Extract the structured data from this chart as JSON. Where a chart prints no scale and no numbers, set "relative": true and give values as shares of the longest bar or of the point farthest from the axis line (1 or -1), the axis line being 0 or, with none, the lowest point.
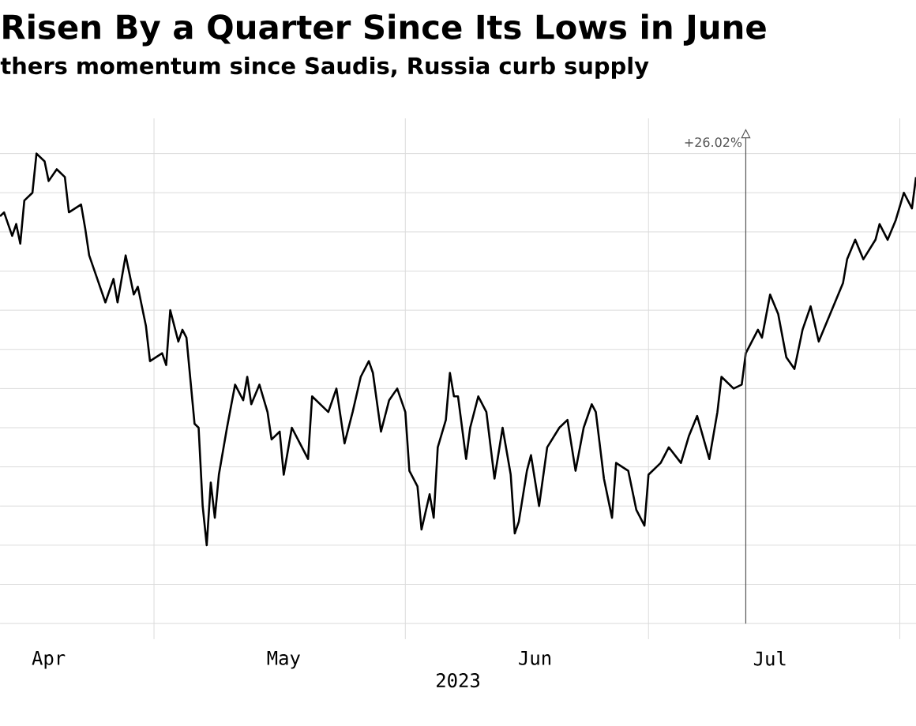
{
  "chart_data": {
    "type": "line",
    "title": "Risen By a Quarter Since Its Lows in June",
    "subtitle": "thers momentum since Saudis, Russia curb supply",
    "xlabel": "2023",
    "relative": true,
    "color": "#000000",
    "grid": true,
    "xlim": [
      "2023-04-12",
      "2023-08-03"
    ],
    "xticks": [
      {
        "value": "2023-05-01",
        "label": null
      },
      {
        "value": "2023-06-01",
        "label": null
      },
      {
        "value": "2023-07-01",
        "label": null
      },
      {
        "value": "2023-08-01",
        "label": null
      },
      {
        "value": "2023-04-18",
        "label": "Apr"
      },
      {
        "value": "2023-05-17",
        "label": "May"
      },
      {
        "value": "2023-06-17",
        "label": "Jun"
      },
      {
        "value": "2023-07-16",
        "label": "Jul"
      }
    ],
    "ref_lines": [
      {
        "axis": "x",
        "value": "2023-07-13",
        "label": "+26.02%",
        "color": "#555555"
      }
    ],
    "x": [
      "2023-04-12",
      "2023-04-12T12:00",
      "2023-04-13T12:00",
      "2023-04-14",
      "2023-04-14T12:00",
      "2023-04-15",
      "2023-04-16",
      "2023-04-16T12:00",
      "2023-04-17T12:00",
      "2023-04-18",
      "2023-04-19",
      "2023-04-20",
      "2023-04-20T12:00",
      "2023-04-22",
      "2023-04-22T12:00",
      "2023-04-23",
      "2023-04-24",
      "2023-04-25",
      "2023-04-26",
      "2023-04-26T12:00",
      "2023-04-27T12:00",
      "2023-04-28T12:00",
      "2023-04-29",
      "2023-04-30",
      "2023-04-30T12:00",
      "2023-05-02",
      "2023-05-02T12:00",
      "2023-05-03",
      "2023-05-04",
      "2023-05-04T12:00",
      "2023-05-05",
      "2023-05-06",
      "2023-05-06T12:00",
      "2023-05-07",
      "2023-05-07T12:00",
      "2023-05-08",
      "2023-05-08T12:00",
      "2023-05-09",
      "2023-05-10",
      "2023-05-11",
      "2023-05-12",
      "2023-05-12T12:00",
      "2023-05-13",
      "2023-05-14",
      "2023-05-15",
      "2023-05-15T12:00",
      "2023-05-16T12:00",
      "2023-05-17",
      "2023-05-18",
      "2023-05-19",
      "2023-05-20",
      "2023-05-20T12:00",
      "2023-05-22T12:00",
      "2023-05-23T12:00",
      "2023-05-24T12:00",
      "2023-05-25T12:00",
      "2023-05-26T12:00",
      "2023-05-27T12:00",
      "2023-05-28",
      "2023-05-29",
      "2023-05-30",
      "2023-05-31",
      "2023-06-01",
      "2023-06-01T12:00",
      "2023-06-02T12:00",
      "2023-06-03",
      "2023-06-04",
      "2023-06-04T12:00",
      "2023-06-05",
      "2023-06-06",
      "2023-06-06T12:00",
      "2023-06-07",
      "2023-06-07T12:00",
      "2023-06-08T12:00",
      "2023-06-09",
      "2023-06-10",
      "2023-06-11",
      "2023-06-12",
      "2023-06-13",
      "2023-06-14",
      "2023-06-14T12:00",
      "2023-06-15",
      "2023-06-16",
      "2023-06-16T12:00",
      "2023-06-17T12:00",
      "2023-06-18T12:00",
      "2023-06-20",
      "2023-06-21",
      "2023-06-22",
      "2023-06-23",
      "2023-06-24",
      "2023-06-24T12:00",
      "2023-06-25T12:00",
      "2023-06-26T12:00",
      "2023-06-27",
      "2023-06-28T12:00",
      "2023-06-29T12:00",
      "2023-06-30T12:00",
      "2023-07-01",
      "2023-07-02T12:00",
      "2023-07-03T12:00",
      "2023-07-05",
      "2023-07-06",
      "2023-07-07",
      "2023-07-08T12:00",
      "2023-07-09T12:00",
      "2023-07-10",
      "2023-07-11T12:00",
      "2023-07-12T12:00",
      "2023-07-13",
      "2023-07-14T12:00",
      "2023-07-15",
      "2023-07-16",
      "2023-07-17",
      "2023-07-18",
      "2023-07-19",
      "2023-07-20",
      "2023-07-21",
      "2023-07-22",
      "2023-07-23",
      "2023-07-24",
      "2023-07-25",
      "2023-07-25T12:00",
      "2023-07-26T12:00",
      "2023-07-27T12:00",
      "2023-07-29",
      "2023-07-29T12:00",
      "2023-07-30T12:00",
      "2023-07-31T12:00",
      "2023-08-01T12:00",
      "2023-08-02T12:00",
      "2023-08-03"
    ],
    "values": [
      0.84,
      0.85,
      0.79,
      0.82,
      0.77,
      0.88,
      0.9,
      1.0,
      0.98,
      0.93,
      0.96,
      0.94,
      0.85,
      0.87,
      0.81,
      0.74,
      0.68,
      0.62,
      0.68,
      0.62,
      0.74,
      0.64,
      0.66,
      0.56,
      0.47,
      0.49,
      0.46,
      0.6,
      0.52,
      0.55,
      0.53,
      0.31,
      0.3,
      0.1,
      0.0,
      0.16,
      0.07,
      0.18,
      0.3,
      0.41,
      0.37,
      0.43,
      0.36,
      0.41,
      0.34,
      0.27,
      0.29,
      0.18,
      0.3,
      0.26,
      0.22,
      0.38,
      0.34,
      0.4,
      0.26,
      0.34,
      0.43,
      0.47,
      0.44,
      0.29,
      0.37,
      0.4,
      0.34,
      0.19,
      0.15,
      0.04,
      0.13,
      0.07,
      0.25,
      0.32,
      0.44,
      0.38,
      0.38,
      0.22,
      0.3,
      0.38,
      0.34,
      0.17,
      0.3,
      0.18,
      0.03,
      0.06,
      0.19,
      0.23,
      0.1,
      0.25,
      0.3,
      0.32,
      0.19,
      0.3,
      0.36,
      0.34,
      0.17,
      0.07,
      0.21,
      0.19,
      0.09,
      0.05,
      0.18,
      0.21,
      0.25,
      0.21,
      0.28,
      0.33,
      0.22,
      0.34,
      0.43,
      0.4,
      0.41,
      0.49,
      0.55,
      0.53,
      0.64,
      0.59,
      0.48,
      0.45,
      0.55,
      0.61,
      0.52,
      0.57,
      0.62,
      0.67,
      0.73,
      0.78,
      0.73,
      0.78,
      0.82,
      0.78,
      0.83,
      0.9,
      0.86,
      0.94
    ]
  }
}
